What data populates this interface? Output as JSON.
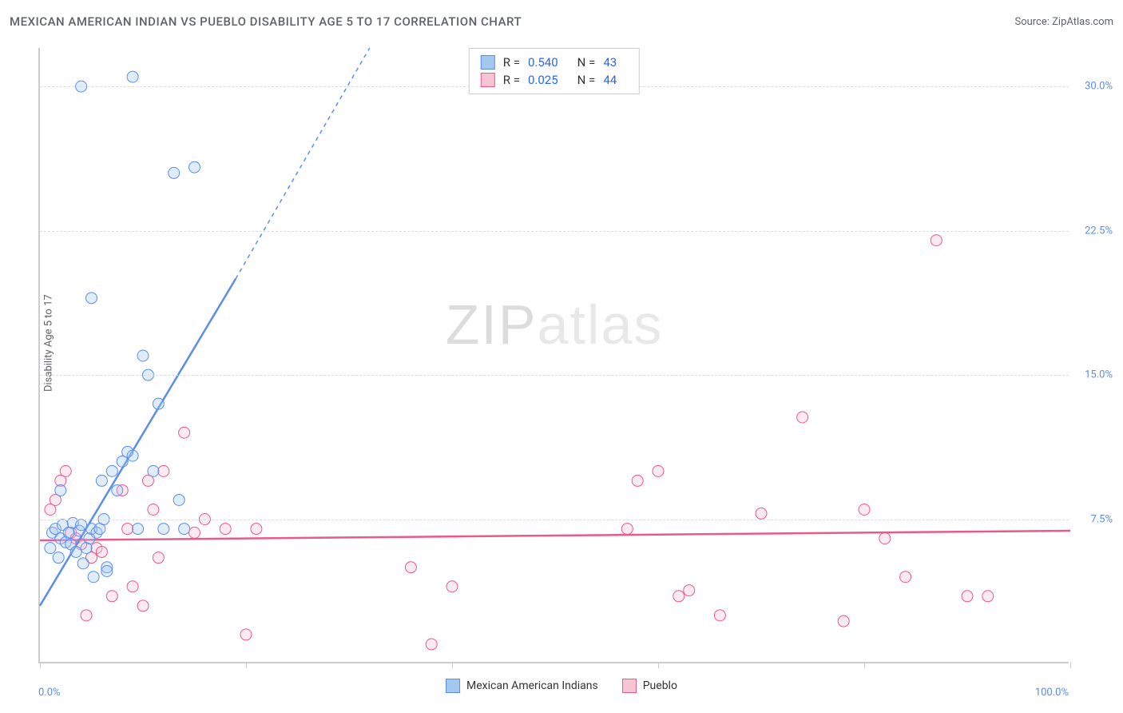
{
  "title": "MEXICAN AMERICAN INDIAN VS PUEBLO DISABILITY AGE 5 TO 17 CORRELATION CHART",
  "source": "Source: ZipAtlas.com",
  "ylabel": "Disability Age 5 to 17",
  "watermark_a": "ZIP",
  "watermark_b": "atlas",
  "chart": {
    "type": "scatter",
    "background_color": "#ffffff",
    "grid_color": "#dddddd",
    "axis_color": "#cccccc",
    "xlim": [
      0,
      100
    ],
    "ylim": [
      0,
      32
    ],
    "ytick_values": [
      7.5,
      15.0,
      22.5,
      30.0
    ],
    "ytick_labels": [
      "7.5%",
      "15.0%",
      "22.5%",
      "30.0%"
    ],
    "xtick_values": [
      0,
      20,
      40,
      60,
      80,
      100
    ],
    "xaxis_min_label": "0.0%",
    "xaxis_max_label": "100.0%",
    "marker_radius": 7,
    "marker_fill_opacity": 0.35,
    "marker_stroke_width": 1,
    "trend_line_width": 2.5,
    "trend_line_style_solid": "solid",
    "trend_line_style_dashed": "5,5",
    "label_color": "#5b8def",
    "title_color": "#5f6368",
    "title_fontsize": 15,
    "label_fontsize": 13
  },
  "series": [
    {
      "name": "Mexican American Indians",
      "color_fill": "#a3c8f0",
      "color_stroke": "#5b8def",
      "R": "0.540",
      "N": "43",
      "trend": {
        "x1": 0,
        "y1": 3.0,
        "x2": 19,
        "y2": 20.0,
        "x2_dash": 32,
        "y2_dash": 32.0
      },
      "points": [
        [
          1.0,
          6.0
        ],
        [
          1.2,
          6.8
        ],
        [
          1.5,
          7.0
        ],
        [
          1.8,
          5.5
        ],
        [
          2.0,
          6.5
        ],
        [
          2.2,
          7.2
        ],
        [
          2.5,
          6.3
        ],
        [
          2.8,
          6.8
        ],
        [
          3.0,
          6.2
        ],
        [
          3.2,
          7.3
        ],
        [
          3.5,
          5.8
        ],
        [
          3.8,
          6.9
        ],
        [
          4.0,
          7.2
        ],
        [
          4.2,
          5.2
        ],
        [
          4.5,
          6.0
        ],
        [
          4.8,
          6.5
        ],
        [
          5.0,
          7.0
        ],
        [
          5.2,
          4.5
        ],
        [
          5.5,
          6.8
        ],
        [
          5.8,
          7.0
        ],
        [
          6.0,
          9.5
        ],
        [
          6.2,
          7.5
        ],
        [
          6.5,
          5.0
        ],
        [
          7.0,
          10.0
        ],
        [
          7.5,
          9.0
        ],
        [
          8.0,
          10.5
        ],
        [
          8.5,
          11.0
        ],
        [
          9.0,
          10.8
        ],
        [
          9.5,
          7.0
        ],
        [
          10.0,
          16.0
        ],
        [
          10.5,
          15.0
        ],
        [
          11.0,
          10.0
        ],
        [
          11.5,
          13.5
        ],
        [
          12.0,
          7.0
        ],
        [
          13.0,
          25.5
        ],
        [
          13.5,
          8.5
        ],
        [
          14.0,
          7.0
        ],
        [
          15.0,
          25.8
        ],
        [
          5.0,
          19.0
        ],
        [
          9.0,
          30.5
        ],
        [
          4.0,
          30.0
        ],
        [
          2.0,
          9.0
        ],
        [
          6.5,
          4.8
        ]
      ]
    },
    {
      "name": "Pueblo",
      "color_fill": "#f7c4d4",
      "color_stroke": "#e85a8a",
      "R": "0.025",
      "N": "44",
      "trend": {
        "x1": 0,
        "y1": 6.4,
        "x2": 100,
        "y2": 6.9
      },
      "points": [
        [
          1.0,
          8.0
        ],
        [
          1.5,
          8.5
        ],
        [
          2.0,
          9.5
        ],
        [
          2.5,
          10.0
        ],
        [
          3.0,
          6.8
        ],
        [
          3.5,
          6.5
        ],
        [
          4.0,
          6.2
        ],
        [
          4.5,
          2.5
        ],
        [
          5.0,
          5.5
        ],
        [
          5.5,
          6.0
        ],
        [
          6.0,
          5.8
        ],
        [
          7.0,
          3.5
        ],
        [
          8.0,
          9.0
        ],
        [
          8.5,
          7.0
        ],
        [
          9.0,
          4.0
        ],
        [
          10.0,
          3.0
        ],
        [
          10.5,
          9.5
        ],
        [
          11.0,
          8.0
        ],
        [
          11.5,
          5.5
        ],
        [
          12.0,
          10.0
        ],
        [
          14.0,
          12.0
        ],
        [
          15.0,
          6.8
        ],
        [
          16.0,
          7.5
        ],
        [
          18.0,
          7.0
        ],
        [
          20.0,
          1.5
        ],
        [
          21.0,
          7.0
        ],
        [
          36.0,
          5.0
        ],
        [
          38.0,
          1.0
        ],
        [
          40.0,
          4.0
        ],
        [
          57.0,
          7.0
        ],
        [
          58.0,
          9.5
        ],
        [
          60.0,
          10.0
        ],
        [
          62.0,
          3.5
        ],
        [
          63.0,
          3.8
        ],
        [
          66.0,
          2.5
        ],
        [
          70.0,
          7.8
        ],
        [
          74.0,
          12.8
        ],
        [
          78.0,
          2.2
        ],
        [
          80.0,
          8.0
        ],
        [
          82.0,
          6.5
        ],
        [
          84.0,
          4.5
        ],
        [
          87.0,
          22.0
        ],
        [
          90.0,
          3.5
        ],
        [
          92.0,
          3.5
        ]
      ]
    }
  ],
  "legend": {
    "r_label": "R =",
    "n_label": "N ="
  }
}
